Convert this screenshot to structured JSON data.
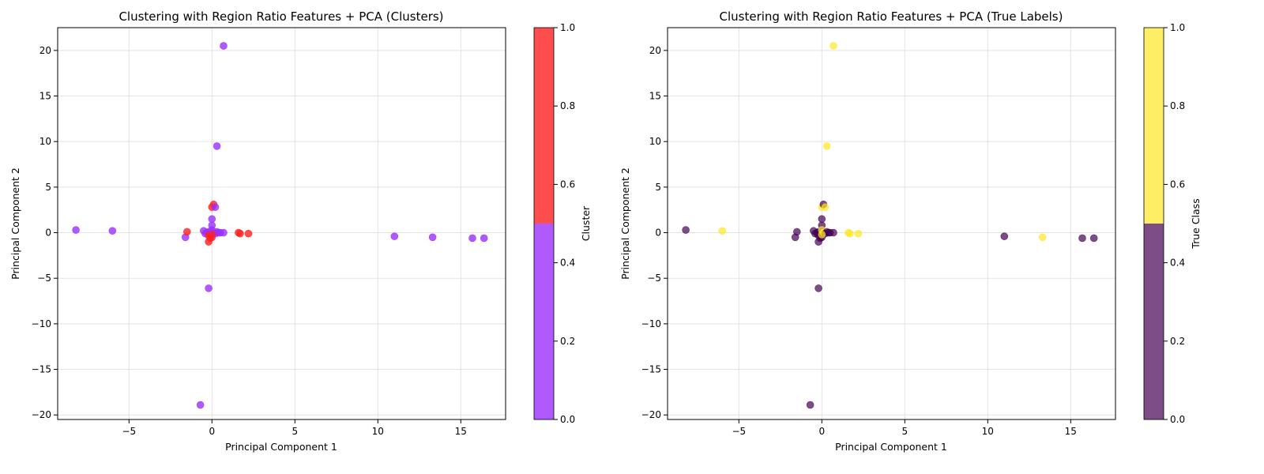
{
  "chart_data": [
    {
      "type": "scatter",
      "title": "Clustering with Region Ratio Features + PCA (Clusters)",
      "xlabel": "Principal Component 1",
      "ylabel": "Principal Component 2",
      "xlim": [
        -9.3,
        17.7
      ],
      "ylim": [
        -20.5,
        22.5
      ],
      "xticks": [
        -5,
        0,
        5,
        10,
        15
      ],
      "yticks": [
        -20,
        -15,
        -10,
        -5,
        0,
        5,
        10,
        15,
        20
      ],
      "grid": true,
      "colorbar": {
        "label": "Cluster",
        "range": [
          0,
          1
        ],
        "ticks": [
          "0.0",
          "0.2",
          "0.4",
          "0.6",
          "0.8",
          "1.0"
        ],
        "colors": [
          "#9b30ff",
          "#ff2020"
        ]
      },
      "points": [
        {
          "x": -8.2,
          "y": 0.3,
          "c": 0
        },
        {
          "x": -6.0,
          "y": 0.2,
          "c": 0
        },
        {
          "x": -1.6,
          "y": -0.5,
          "c": 0
        },
        {
          "x": -1.5,
          "y": 0.1,
          "c": 1
        },
        {
          "x": -0.5,
          "y": 0.2,
          "c": 0
        },
        {
          "x": -0.4,
          "y": -0.1,
          "c": 0
        },
        {
          "x": -0.3,
          "y": 0.0,
          "c": 0
        },
        {
          "x": -0.2,
          "y": 0.1,
          "c": 0
        },
        {
          "x": -0.2,
          "y": -0.3,
          "c": 1
        },
        {
          "x": -0.1,
          "y": -0.6,
          "c": 1
        },
        {
          "x": -0.2,
          "y": -1.0,
          "c": 1
        },
        {
          "x": 0.0,
          "y": -0.5,
          "c": 1
        },
        {
          "x": 0.0,
          "y": 2.8,
          "c": 1
        },
        {
          "x": 0.1,
          "y": 3.1,
          "c": 1
        },
        {
          "x": 0.2,
          "y": 2.8,
          "c": 0
        },
        {
          "x": 0.0,
          "y": 1.5,
          "c": 0
        },
        {
          "x": 0.0,
          "y": 0.8,
          "c": 0
        },
        {
          "x": 0.0,
          "y": 0.3,
          "c": 0
        },
        {
          "x": 0.1,
          "y": 0.0,
          "c": 0
        },
        {
          "x": 0.2,
          "y": -0.1,
          "c": 0
        },
        {
          "x": 0.3,
          "y": 0.1,
          "c": 0
        },
        {
          "x": 0.4,
          "y": 0.0,
          "c": 0
        },
        {
          "x": 0.5,
          "y": 0.0,
          "c": 0
        },
        {
          "x": 0.7,
          "y": 0.0,
          "c": 0
        },
        {
          "x": 0.0,
          "y": -0.2,
          "c": 1
        },
        {
          "x": 1.6,
          "y": 0.0,
          "c": 1
        },
        {
          "x": 1.7,
          "y": -0.1,
          "c": 1
        },
        {
          "x": 2.2,
          "y": -0.1,
          "c": 1
        },
        {
          "x": 0.3,
          "y": 9.5,
          "c": 0
        },
        {
          "x": 0.7,
          "y": 20.5,
          "c": 0
        },
        {
          "x": -0.2,
          "y": -6.1,
          "c": 0
        },
        {
          "x": -0.7,
          "y": -18.9,
          "c": 0
        },
        {
          "x": 11.0,
          "y": -0.4,
          "c": 0
        },
        {
          "x": 13.3,
          "y": -0.5,
          "c": 0
        },
        {
          "x": 15.7,
          "y": -0.6,
          "c": 0
        },
        {
          "x": 16.4,
          "y": -0.6,
          "c": 0
        }
      ]
    },
    {
      "type": "scatter",
      "title": "Clustering with Region Ratio Features + PCA (True Labels)",
      "xlabel": "Principal Component 1",
      "ylabel": "Principal Component 2",
      "xlim": [
        -9.3,
        17.7
      ],
      "ylim": [
        -20.5,
        22.5
      ],
      "xticks": [
        -5,
        0,
        5,
        10,
        15
      ],
      "yticks": [
        -20,
        -15,
        -10,
        -5,
        0,
        5,
        10,
        15,
        20
      ],
      "grid": true,
      "colorbar": {
        "label": "True Class",
        "range": [
          0,
          1
        ],
        "ticks": [
          "0.0",
          "0.2",
          "0.4",
          "0.6",
          "0.8",
          "1.0"
        ],
        "colors": [
          "#440154",
          "#fde725"
        ]
      },
      "points": [
        {
          "x": -8.2,
          "y": 0.3,
          "c": 0
        },
        {
          "x": -6.0,
          "y": 0.2,
          "c": 1
        },
        {
          "x": -1.6,
          "y": -0.5,
          "c": 0
        },
        {
          "x": -1.5,
          "y": 0.1,
          "c": 0
        },
        {
          "x": -0.5,
          "y": 0.2,
          "c": 0
        },
        {
          "x": -0.4,
          "y": -0.1,
          "c": 0
        },
        {
          "x": -0.3,
          "y": 0.0,
          "c": 0
        },
        {
          "x": -0.2,
          "y": 0.1,
          "c": 0
        },
        {
          "x": -0.2,
          "y": -0.3,
          "c": 0
        },
        {
          "x": -0.1,
          "y": -0.6,
          "c": 0
        },
        {
          "x": -0.2,
          "y": -1.0,
          "c": 0
        },
        {
          "x": 0.0,
          "y": -0.5,
          "c": 0
        },
        {
          "x": 0.0,
          "y": 2.8,
          "c": 1
        },
        {
          "x": 0.1,
          "y": 3.1,
          "c": 0
        },
        {
          "x": 0.2,
          "y": 2.8,
          "c": 1
        },
        {
          "x": 0.0,
          "y": 1.5,
          "c": 0
        },
        {
          "x": 0.0,
          "y": 0.8,
          "c": 0
        },
        {
          "x": 0.0,
          "y": 0.3,
          "c": 1
        },
        {
          "x": 0.1,
          "y": 0.0,
          "c": 1
        },
        {
          "x": 0.2,
          "y": -0.1,
          "c": 0
        },
        {
          "x": 0.3,
          "y": 0.1,
          "c": 0
        },
        {
          "x": 0.4,
          "y": 0.0,
          "c": 0
        },
        {
          "x": 0.5,
          "y": 0.0,
          "c": 0
        },
        {
          "x": 0.7,
          "y": 0.0,
          "c": 0
        },
        {
          "x": 0.0,
          "y": -0.2,
          "c": 1
        },
        {
          "x": 1.6,
          "y": 0.0,
          "c": 1
        },
        {
          "x": 1.7,
          "y": -0.1,
          "c": 1
        },
        {
          "x": 2.2,
          "y": -0.1,
          "c": 1
        },
        {
          "x": 0.3,
          "y": 9.5,
          "c": 1
        },
        {
          "x": 0.7,
          "y": 20.5,
          "c": 1
        },
        {
          "x": -0.2,
          "y": -6.1,
          "c": 0
        },
        {
          "x": -0.7,
          "y": -18.9,
          "c": 0
        },
        {
          "x": 11.0,
          "y": -0.4,
          "c": 0
        },
        {
          "x": 13.3,
          "y": -0.5,
          "c": 1
        },
        {
          "x": 15.7,
          "y": -0.6,
          "c": 0
        },
        {
          "x": 16.4,
          "y": -0.6,
          "c": 0
        }
      ]
    }
  ]
}
